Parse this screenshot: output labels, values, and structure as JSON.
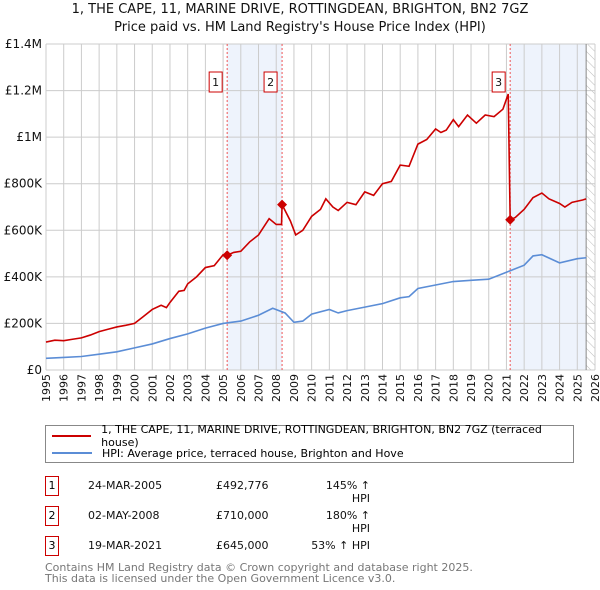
{
  "title": "1, THE CAPE, 11, MARINE DRIVE, ROTTINGDEAN, BRIGHTON, BN2 7GZ",
  "subtitle": "Price paid vs. HM Land Registry's House Price Index (HPI)",
  "chart_data": {
    "type": "line",
    "xlim": [
      1995,
      2026
    ],
    "ylim": [
      0,
      1400000
    ],
    "yticks": [
      {
        "v": 0,
        "l": "£0"
      },
      {
        "v": 200000,
        "l": "£200K"
      },
      {
        "v": 400000,
        "l": "£400K"
      },
      {
        "v": 600000,
        "l": "£600K"
      },
      {
        "v": 800000,
        "l": "£800K"
      },
      {
        "v": 1000000,
        "l": "£1M"
      },
      {
        "v": 1200000,
        "l": "£1.2M"
      },
      {
        "v": 1400000,
        "l": "£1.4M"
      }
    ],
    "xticks": [
      "1995",
      "1996",
      "1997",
      "1998",
      "1999",
      "2000",
      "2001",
      "2002",
      "2003",
      "2004",
      "2005",
      "2006",
      "2007",
      "2008",
      "2009",
      "2010",
      "2011",
      "2012",
      "2013",
      "2014",
      "2015",
      "2016",
      "2017",
      "2018",
      "2019",
      "2020",
      "2021",
      "2022",
      "2023",
      "2024",
      "2025",
      "2026"
    ],
    "shaded": [
      [
        2005.23,
        2008.33
      ],
      [
        2021.21,
        2025.5
      ]
    ],
    "hatch_from": 2025.5,
    "series": [
      {
        "name": "1, THE CAPE, 11, MARINE DRIVE, ROTTINGDEAN, BRIGHTON, BN2 7GZ (terraced house)",
        "color": "#cc0000",
        "x": [
          1995,
          1995.5,
          1996,
          1996.5,
          1997,
          1997.5,
          1998,
          1998.5,
          1999,
          1999.5,
          2000,
          2000.5,
          2001,
          2001.5,
          2001.8,
          2002,
          2002.5,
          2002.8,
          2003,
          2003.5,
          2004,
          2004.5,
          2005,
          2005.23,
          2005.6,
          2006,
          2006.5,
          2007,
          2007.6,
          2008,
          2008.3,
          2008.33,
          2008.8,
          2009.1,
          2009.5,
          2010,
          2010.5,
          2010.8,
          2011.2,
          2011.5,
          2012,
          2012.5,
          2013,
          2013.5,
          2014,
          2014.5,
          2015,
          2015.5,
          2016,
          2016.5,
          2017,
          2017.3,
          2017.6,
          2018,
          2018.3,
          2018.8,
          2019.3,
          2019.8,
          2020.3,
          2020.8,
          2021.1,
          2021.21,
          2021.5,
          2022,
          2022.5,
          2023,
          2023.4,
          2024,
          2024.3,
          2024.7,
          2025.3,
          2025.5
        ],
        "y": [
          120000,
          128000,
          126000,
          132000,
          138000,
          150000,
          165000,
          175000,
          185000,
          192000,
          200000,
          230000,
          260000,
          278000,
          268000,
          290000,
          338000,
          342000,
          370000,
          400000,
          440000,
          448000,
          495000,
          492776,
          505000,
          510000,
          550000,
          580000,
          650000,
          625000,
          625000,
          710000,
          640000,
          580000,
          600000,
          660000,
          690000,
          735000,
          700000,
          685000,
          720000,
          710000,
          765000,
          750000,
          800000,
          810000,
          880000,
          875000,
          970000,
          990000,
          1035000,
          1020000,
          1030000,
          1075000,
          1045000,
          1095000,
          1060000,
          1095000,
          1088000,
          1120000,
          1185000,
          645000,
          655000,
          690000,
          740000,
          760000,
          735000,
          715000,
          700000,
          720000,
          730000,
          735000
        ]
      },
      {
        "name": "HPI: Average price, terraced house, Brighton and Hove",
        "color": "#5b8dd6",
        "x": [
          1995,
          1996,
          1997,
          1998,
          1999,
          2000,
          2001,
          2002,
          2003,
          2004,
          2005,
          2006,
          2007,
          2007.8,
          2008.5,
          2009,
          2009.5,
          2010,
          2011,
          2011.5,
          2012,
          2013,
          2014,
          2015,
          2015.5,
          2016,
          2017,
          2018,
          2019,
          2020,
          2021,
          2022,
          2022.5,
          2023,
          2024,
          2025,
          2025.5
        ],
        "y": [
          50000,
          54000,
          58000,
          68000,
          78000,
          95000,
          112000,
          135000,
          155000,
          180000,
          200000,
          210000,
          235000,
          265000,
          245000,
          205000,
          210000,
          240000,
          260000,
          245000,
          255000,
          270000,
          285000,
          310000,
          315000,
          350000,
          365000,
          380000,
          385000,
          390000,
          420000,
          450000,
          490000,
          495000,
          460000,
          478000,
          482000
        ]
      }
    ],
    "sales": [
      {
        "n": "1",
        "date": "24-MAR-2005",
        "x": 2005.23,
        "price": "£492,776",
        "value": 492776,
        "hpi": "145% ↑ HPI"
      },
      {
        "n": "2",
        "date": "02-MAY-2008",
        "x": 2008.33,
        "price": "£710,000",
        "value": 710000,
        "hpi": "180% ↑ HPI"
      },
      {
        "n": "3",
        "date": "19-MAR-2021",
        "x": 2021.21,
        "price": "£645,000",
        "value": 645000,
        "hpi": "53% ↑ HPI"
      }
    ]
  },
  "footer": [
    "Contains HM Land Registry data © Crown copyright and database right 2025.",
    "This data is licensed under the Open Government Licence v3.0."
  ]
}
